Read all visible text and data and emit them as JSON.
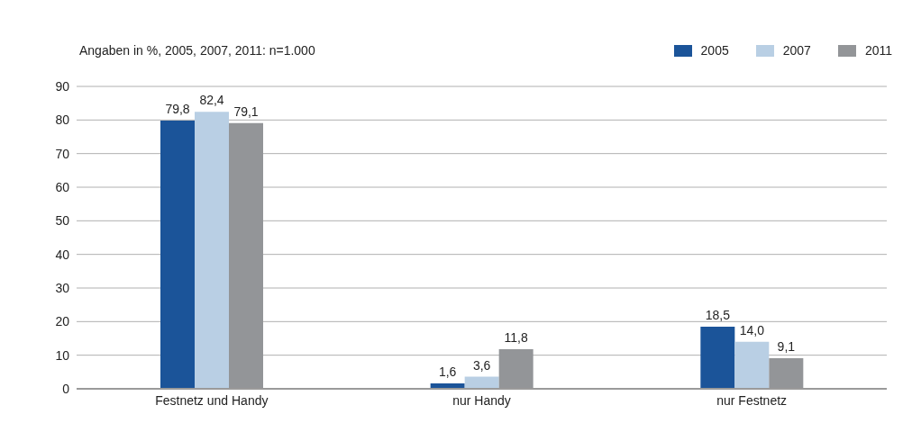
{
  "chart_data": {
    "type": "bar",
    "subtitle": "Angaben in %, 2005, 2007, 2011: n=1.000",
    "categories": [
      "Festnetz und Handy",
      "nur Handy",
      "nur Festnetz"
    ],
    "series": [
      {
        "name": "2005",
        "color": "#1b5499",
        "values": [
          79.8,
          1.6,
          18.5
        ],
        "value_labels": [
          "79,8",
          "1,6",
          "18,5"
        ]
      },
      {
        "name": "2007",
        "color": "#b9cfe4",
        "values": [
          82.4,
          3.6,
          14.0
        ],
        "value_labels": [
          "82,4",
          "3,6",
          "14,0"
        ]
      },
      {
        "name": "2011",
        "color": "#939598",
        "values": [
          79.1,
          11.8,
          9.1
        ],
        "value_labels": [
          "79,1",
          "11,8",
          "9,1"
        ]
      }
    ],
    "ylim": [
      0,
      90
    ],
    "yticks": [
      0,
      10,
      20,
      30,
      40,
      50,
      60,
      70,
      80,
      90
    ],
    "grid": "y",
    "legend": "top right"
  }
}
